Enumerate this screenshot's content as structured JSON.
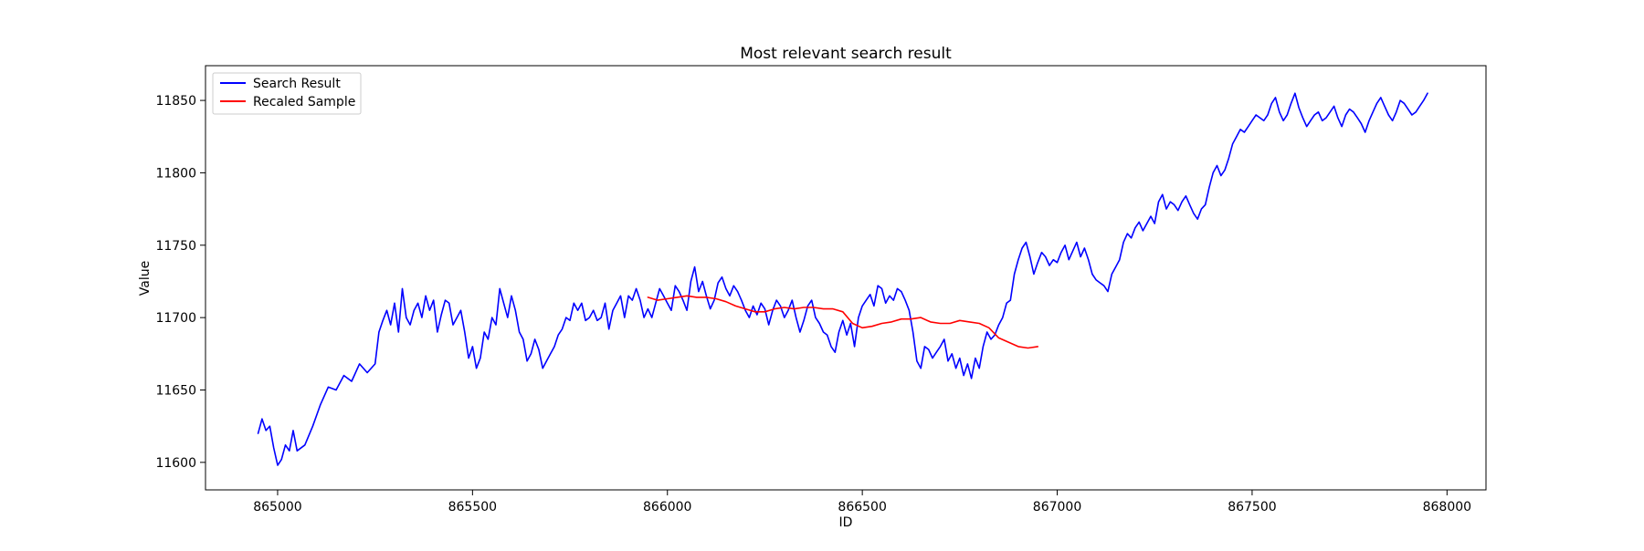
{
  "chart_data": {
    "type": "line",
    "title": "Most relevant search result",
    "xlabel": "ID",
    "ylabel": "Value",
    "xlim": [
      864815,
      868100
    ],
    "ylim": [
      11581,
      11874
    ],
    "xticks": [
      865000,
      865500,
      866000,
      866500,
      867000,
      867500,
      868000
    ],
    "yticks": [
      11600,
      11650,
      11700,
      11750,
      11800,
      11850
    ],
    "grid": false,
    "legend": {
      "placement": "top-left"
    },
    "series": [
      {
        "name": "Search Result",
        "color": "#0000ff",
        "x": [
          864950,
          864960,
          864970,
          864980,
          864990,
          865000,
          865010,
          865020,
          865030,
          865040,
          865050,
          865070,
          865090,
          865110,
          865130,
          865150,
          865170,
          865190,
          865210,
          865230,
          865250,
          865260,
          865270,
          865280,
          865290,
          865300,
          865310,
          865320,
          865330,
          865340,
          865350,
          865360,
          865370,
          865380,
          865390,
          865400,
          865410,
          865420,
          865430,
          865440,
          865450,
          865460,
          865470,
          865480,
          865490,
          865500,
          865510,
          865520,
          865530,
          865540,
          865550,
          865560,
          865570,
          865580,
          865590,
          865600,
          865610,
          865620,
          865630,
          865640,
          865650,
          865660,
          865670,
          865680,
          865690,
          865700,
          865710,
          865720,
          865730,
          865740,
          865750,
          865760,
          865770,
          865780,
          865790,
          865800,
          865810,
          865820,
          865830,
          865840,
          865850,
          865860,
          865870,
          865880,
          865890,
          865900,
          865910,
          865920,
          865930,
          865940,
          865950,
          865960,
          865970,
          865980,
          865990,
          866000,
          866010,
          866020,
          866030,
          866040,
          866050,
          866060,
          866070,
          866080,
          866090,
          866100,
          866110,
          866120,
          866130,
          866140,
          866150,
          866160,
          866170,
          866180,
          866190,
          866200,
          866210,
          866220,
          866230,
          866240,
          866250,
          866260,
          866270,
          866280,
          866290,
          866300,
          866310,
          866320,
          866330,
          866340,
          866350,
          866360,
          866370,
          866380,
          866390,
          866400,
          866410,
          866420,
          866430,
          866440,
          866450,
          866460,
          866470,
          866480,
          866490,
          866500,
          866510,
          866520,
          866530,
          866540,
          866550,
          866560,
          866570,
          866580,
          866590,
          866600,
          866610,
          866620,
          866630,
          866640,
          866650,
          866660,
          866670,
          866680,
          866690,
          866700,
          866710,
          866720,
          866730,
          866740,
          866750,
          866760,
          866770,
          866780,
          866790,
          866800,
          866810,
          866820,
          866830,
          866840,
          866850,
          866860,
          866870,
          866880,
          866890,
          866900,
          866910,
          866920,
          866930,
          866940,
          866950,
          866960,
          866970,
          866980,
          866990,
          867000,
          867010,
          867020,
          867030,
          867040,
          867050,
          867060,
          867070,
          867080,
          867090,
          867100,
          867110,
          867120,
          867130,
          867140,
          867150,
          867160,
          867170,
          867180,
          867190,
          867200,
          867210,
          867220,
          867230,
          867240,
          867250,
          867260,
          867270,
          867280,
          867290,
          867300,
          867310,
          867320,
          867330,
          867340,
          867350,
          867360,
          867370,
          867380,
          867390,
          867400,
          867410,
          867420,
          867430,
          867440,
          867450,
          867460,
          867470,
          867480,
          867490,
          867500,
          867510,
          867520,
          867530,
          867540,
          867550,
          867560,
          867570,
          867580,
          867590,
          867600,
          867610,
          867620,
          867630,
          867640,
          867650,
          867660,
          867670,
          867680,
          867690,
          867700,
          867710,
          867720,
          867730,
          867740,
          867750,
          867760,
          867770,
          867780,
          867790,
          867800,
          867810,
          867820,
          867830,
          867840,
          867850,
          867860,
          867870,
          867880,
          867890,
          867900,
          867910,
          867920,
          867930,
          867940,
          867950
        ],
        "y": [
          11620,
          11630,
          11622,
          11625,
          11610,
          11598,
          11602,
          11612,
          11608,
          11622,
          11608,
          11612,
          11625,
          11640,
          11652,
          11650,
          11660,
          11656,
          11668,
          11662,
          11668,
          11690,
          11698,
          11705,
          11695,
          11710,
          11690,
          11720,
          11700,
          11695,
          11705,
          11710,
          11700,
          11715,
          11705,
          11712,
          11690,
          11702,
          11712,
          11710,
          11695,
          11700,
          11705,
          11690,
          11672,
          11680,
          11665,
          11672,
          11690,
          11685,
          11700,
          11695,
          11720,
          11710,
          11700,
          11715,
          11705,
          11690,
          11685,
          11670,
          11675,
          11685,
          11678,
          11665,
          11670,
          11675,
          11680,
          11688,
          11692,
          11700,
          11698,
          11710,
          11705,
          11710,
          11698,
          11700,
          11705,
          11698,
          11700,
          11710,
          11692,
          11705,
          11710,
          11715,
          11700,
          11715,
          11712,
          11720,
          11712,
          11700,
          11706,
          11700,
          11710,
          11720,
          11715,
          11710,
          11705,
          11722,
          11718,
          11712,
          11705,
          11725,
          11735,
          11718,
          11725,
          11715,
          11706,
          11712,
          11724,
          11728,
          11720,
          11715,
          11722,
          11718,
          11712,
          11705,
          11700,
          11708,
          11702,
          11710,
          11706,
          11695,
          11705,
          11712,
          11708,
          11700,
          11705,
          11712,
          11700,
          11690,
          11698,
          11708,
          11712,
          11700,
          11696,
          11690,
          11688,
          11680,
          11676,
          11690,
          11698,
          11688,
          11696,
          11680,
          11700,
          11708,
          11712,
          11716,
          11708,
          11722,
          11720,
          11710,
          11715,
          11712,
          11720,
          11718,
          11712,
          11705,
          11690,
          11670,
          11665,
          11680,
          11678,
          11672,
          11676,
          11680,
          11685,
          11670,
          11675,
          11665,
          11672,
          11660,
          11668,
          11658,
          11672,
          11665,
          11680,
          11690,
          11685,
          11688,
          11695,
          11700,
          11710,
          11712,
          11730,
          11740,
          11748,
          11752,
          11742,
          11730,
          11738,
          11745,
          11742,
          11736,
          11740,
          11738,
          11745,
          11750,
          11740,
          11746,
          11752,
          11742,
          11748,
          11740,
          11730,
          11726,
          11724,
          11722,
          11718,
          11730,
          11735,
          11740,
          11752,
          11758,
          11755,
          11762,
          11766,
          11760,
          11765,
          11770,
          11765,
          11780,
          11785,
          11775,
          11780,
          11778,
          11774,
          11780,
          11784,
          11778,
          11772,
          11768,
          11775,
          11778,
          11790,
          11800,
          11805,
          11798,
          11802,
          11810,
          11820,
          11825,
          11830,
          11828,
          11832,
          11836,
          11840,
          11838,
          11836,
          11840,
          11848,
          11852,
          11842,
          11836,
          11840,
          11848,
          11855,
          11845,
          11838,
          11832,
          11836,
          11840,
          11842,
          11836,
          11838,
          11842,
          11846,
          11838,
          11832,
          11840,
          11844,
          11842,
          11838,
          11834,
          11828,
          11836,
          11842,
          11848,
          11852,
          11846,
          11840,
          11836,
          11842,
          11850,
          11848,
          11844,
          11840,
          11842,
          11846,
          11850,
          11855
        ]
      },
      {
        "name": "Recaled Sample",
        "color": "#ff0000",
        "x": [
          865950,
          865975,
          866000,
          866025,
          866050,
          866075,
          866100,
          866125,
          866150,
          866175,
          866200,
          866225,
          866250,
          866275,
          866300,
          866325,
          866350,
          866375,
          866400,
          866425,
          866450,
          866475,
          866500,
          866525,
          866550,
          866575,
          866600,
          866625,
          866650,
          866675,
          866700,
          866725,
          866750,
          866775,
          866800,
          866825,
          866850,
          866875,
          866900,
          866925,
          866950
        ],
        "y": [
          11714,
          11712,
          11713,
          11714,
          11715,
          11714,
          11714,
          11713,
          11711,
          11708,
          11706,
          11704,
          11704,
          11706,
          11707,
          11706,
          11707,
          11707,
          11706,
          11706,
          11704,
          11696,
          11693,
          11694,
          11696,
          11697,
          11699,
          11699,
          11700,
          11697,
          11696,
          11696,
          11698,
          11697,
          11696,
          11693,
          11686,
          11683,
          11680,
          11679,
          11680
        ]
      }
    ]
  }
}
